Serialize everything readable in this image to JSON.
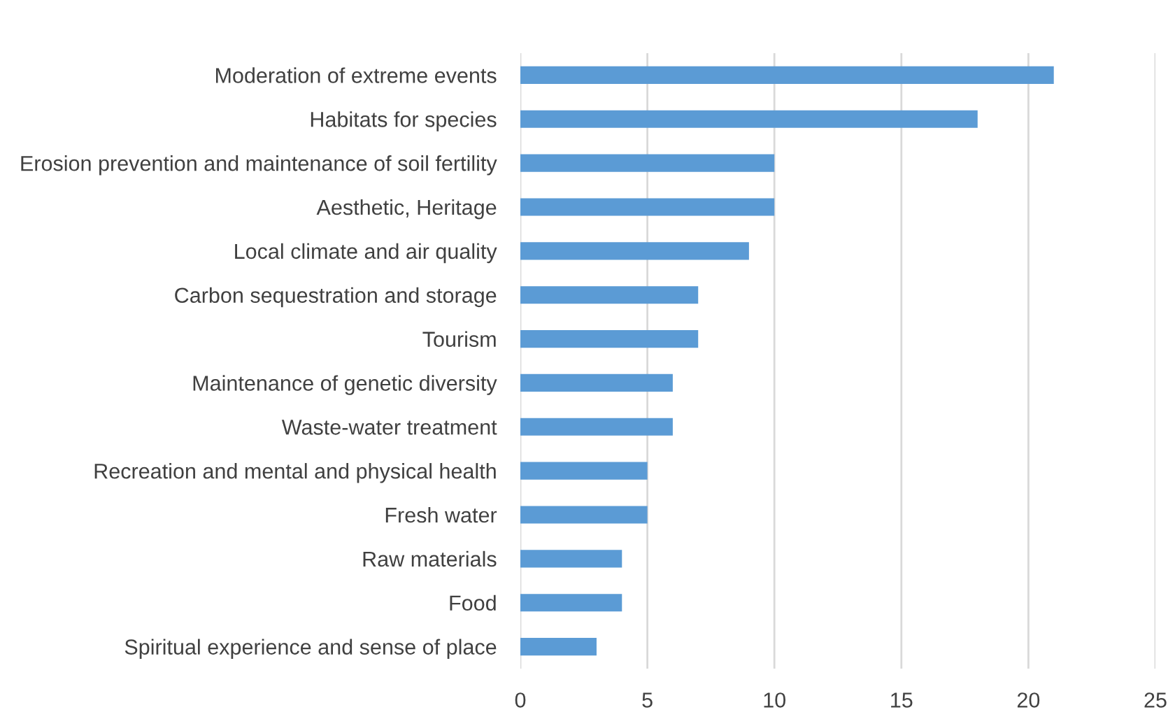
{
  "chart_data": {
    "type": "bar",
    "orientation": "horizontal",
    "categories": [
      "Moderation of extreme events",
      "Habitats for species",
      "Erosion prevention and maintenance of soil fertility",
      "Aesthetic, Heritage",
      "Local climate and air quality",
      "Carbon sequestration and storage",
      "Tourism",
      "Maintenance of genetic diversity",
      "Waste-water treatment",
      "Recreation and mental and physical health",
      "Fresh water",
      "Raw materials",
      "Food",
      "Spiritual experience and sense of place"
    ],
    "values": [
      21,
      18,
      10,
      10,
      9,
      7,
      7,
      6,
      6,
      5,
      5,
      4,
      4,
      3
    ],
    "color": "#5b9bd5",
    "xlim": [
      0,
      25
    ],
    "xticks": [
      0,
      5,
      10,
      15,
      20,
      25
    ],
    "grid": "x",
    "legend": false
  }
}
